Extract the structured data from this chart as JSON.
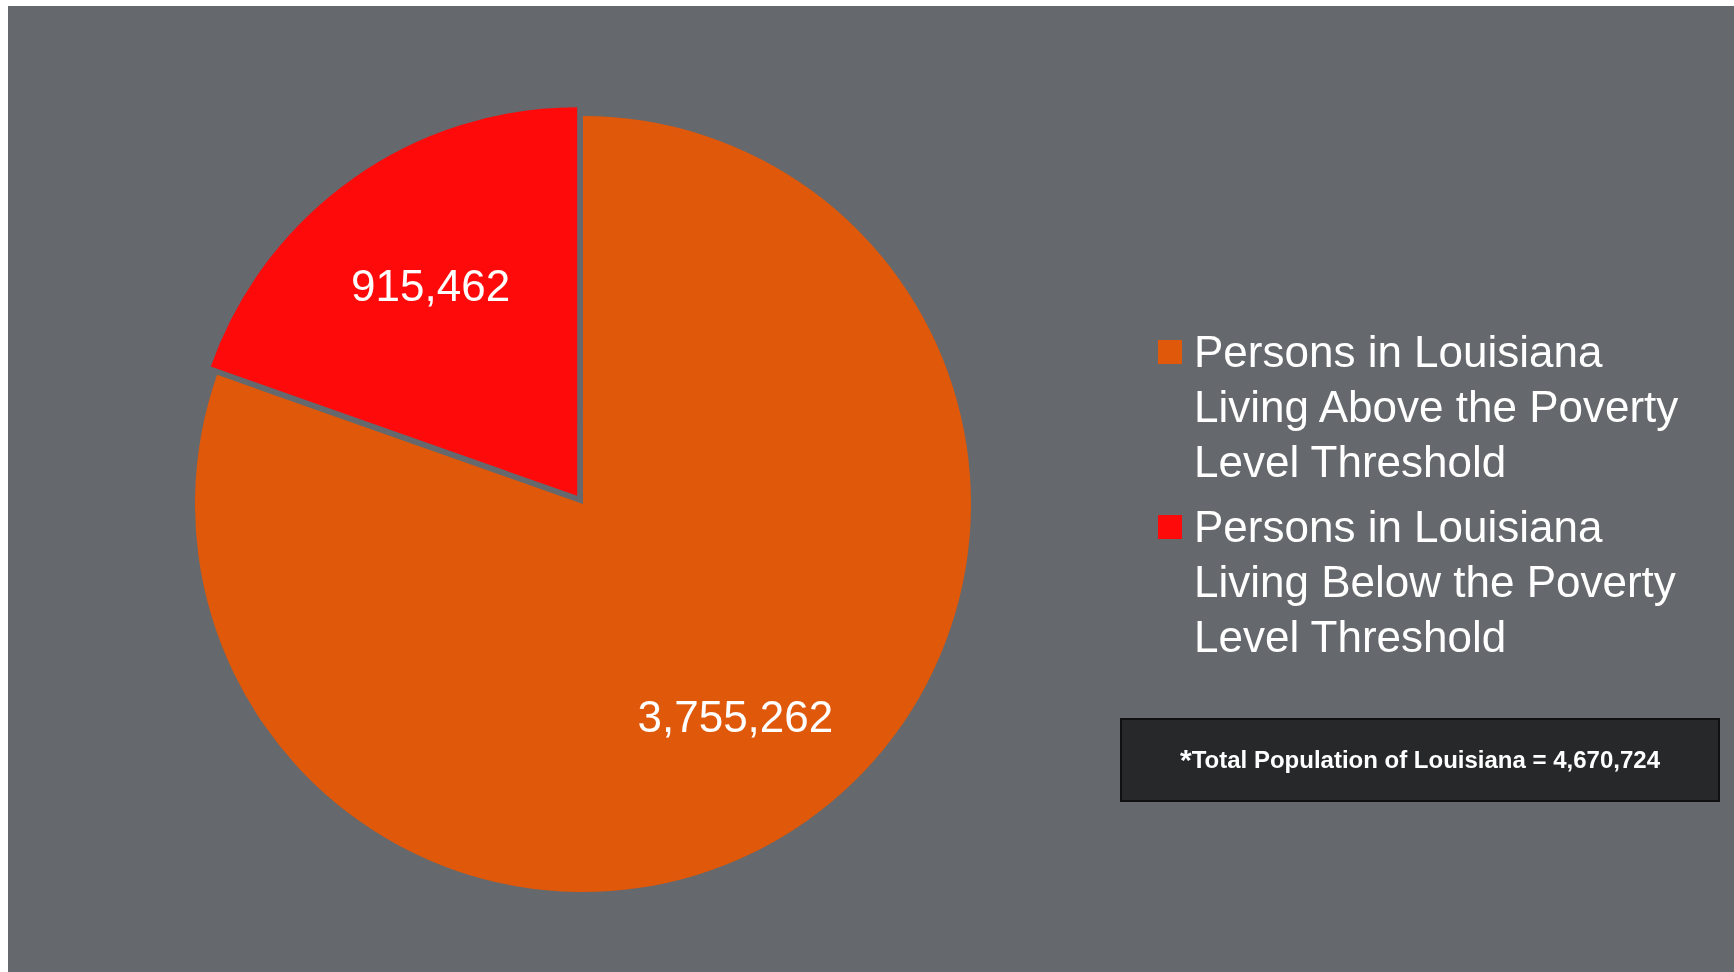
{
  "chart_data": {
    "type": "pie",
    "categories": [
      "Persons in Louisiana Living Above the Poverty Level Threshold",
      "Persons in Louisiana Living Below the Poverty Level Threshold"
    ],
    "values": [
      3755262,
      915462
    ],
    "colors": [
      "#e0580a",
      "#ff0a0a"
    ],
    "value_labels": [
      "3,755,262",
      "915,462"
    ],
    "legend": "right",
    "annotations": [
      "$^{*}$Total Population of Louisiana = 4,670,724"
    ]
  }
}
